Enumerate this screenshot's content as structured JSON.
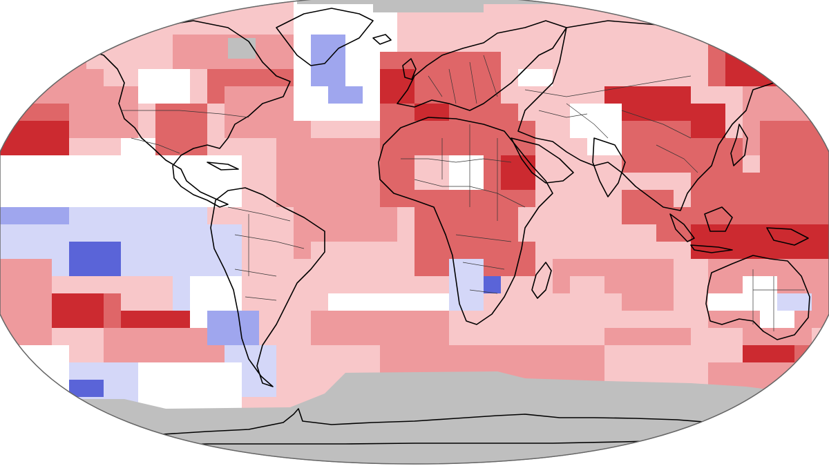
{
  "map": {
    "projection": "robinson",
    "colors": {
      "background": "#ffffff",
      "no_data": "#bfbfbf",
      "coast": "#000000",
      "border": "#222222",
      "anomaly_scale": {
        "-3": "#5a64d8",
        "-2": "#9fa6ee",
        "-1": "#d4d7f8",
        "0": "#ffffff",
        "1": "#f8c7c9",
        "2": "#ee9a9d",
        "3": "#df6668",
        "4": "#cc2a30"
      }
    }
  }
}
